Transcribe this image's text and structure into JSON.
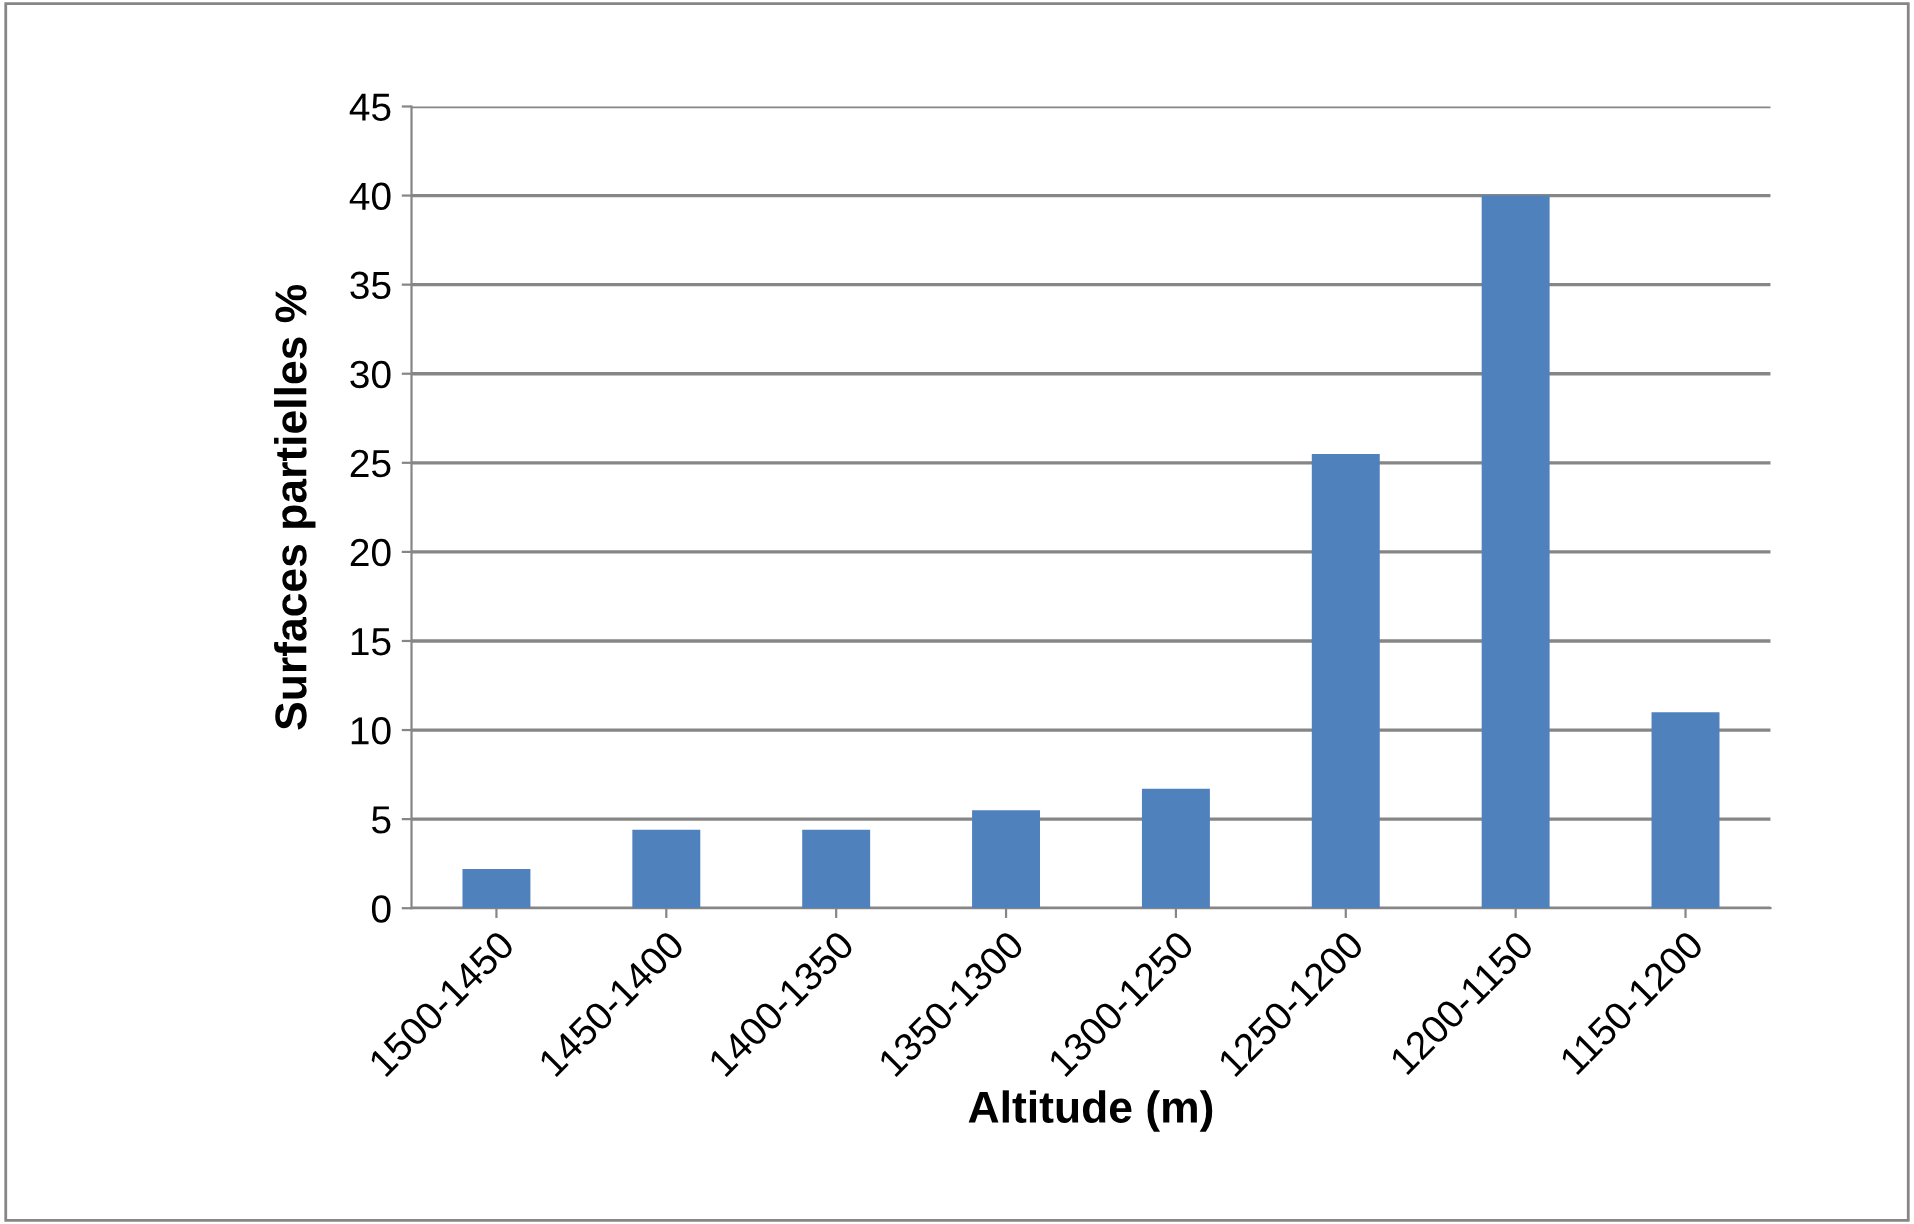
{
  "chart_data": {
    "type": "bar",
    "xlabel": "Altitude (m)",
    "ylabel": "Surfaces partielles %",
    "categories": [
      "1500-1450",
      "1450-1400",
      "1400-1350",
      "1350-1300",
      "1300-1250",
      "1250-1200",
      "1200-1150",
      "1150-1200"
    ],
    "values": [
      2.2,
      4.4,
      4.4,
      5.5,
      6.7,
      25.5,
      40,
      11
    ],
    "color": "#4f81bd",
    "ylim": [
      0,
      45
    ],
    "yticks": [
      0,
      5,
      10,
      15,
      20,
      25,
      30,
      35,
      40,
      45
    ],
    "grid": "y",
    "legend": false
  }
}
